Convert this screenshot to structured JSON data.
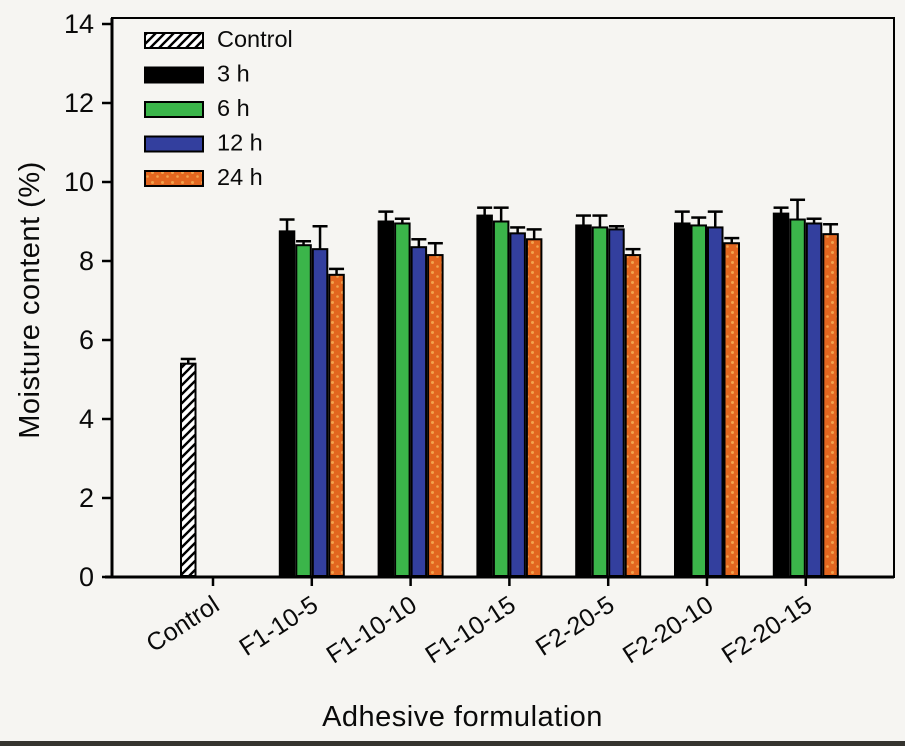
{
  "figure": {
    "background": "#f6f5f2",
    "frame_color": "#000000",
    "text_color": "#0a0a0a"
  },
  "chart_data": {
    "type": "bar",
    "title": "",
    "xlabel": "Adhesive formulation",
    "ylabel": "Moisture content (%)",
    "ylim": [
      0,
      14
    ],
    "yticks": [
      0,
      2,
      4,
      6,
      8,
      10,
      12,
      14
    ],
    "grid": false,
    "legend_position": "top-left",
    "error_bars": "upper",
    "categories": [
      "Control",
      "F1-10-5",
      "F1-10-10",
      "F1-10-15",
      "F2-20-5",
      "F2-20-10",
      "F2-20-15"
    ],
    "series": [
      {
        "name": "Control",
        "style": "hatch",
        "color": "#ffffff",
        "hatch_color": "#000000",
        "slot": 0,
        "values": [
          5.4,
          null,
          null,
          null,
          null,
          null,
          null
        ],
        "errors": [
          0.12,
          null,
          null,
          null,
          null,
          null,
          null
        ]
      },
      {
        "name": "3 h",
        "style": "solid",
        "color": "#000000",
        "slot": 0,
        "values": [
          null,
          8.75,
          9.0,
          9.15,
          8.9,
          8.95,
          9.2
        ],
        "errors": [
          null,
          0.3,
          0.25,
          0.2,
          0.25,
          0.3,
          0.15
        ]
      },
      {
        "name": "6 h",
        "style": "solid",
        "color": "#3bb54a",
        "slot": 1,
        "values": [
          null,
          8.4,
          8.95,
          9.0,
          8.85,
          8.9,
          9.05
        ],
        "errors": [
          null,
          0.1,
          0.12,
          0.35,
          0.3,
          0.2,
          0.5
        ]
      },
      {
        "name": "12 h",
        "style": "solid",
        "color": "#333f9e",
        "slot": 2,
        "values": [
          null,
          8.3,
          8.35,
          8.7,
          8.8,
          8.85,
          8.95
        ],
        "errors": [
          null,
          0.58,
          0.2,
          0.15,
          0.08,
          0.4,
          0.12
        ]
      },
      {
        "name": "24 h",
        "style": "dots",
        "color": "#e2661f",
        "dot_color": "#f2a24d",
        "slot": 3,
        "values": [
          null,
          7.65,
          8.15,
          8.55,
          8.15,
          8.45,
          8.68
        ],
        "errors": [
          null,
          0.15,
          0.3,
          0.25,
          0.15,
          0.13,
          0.25
        ]
      }
    ]
  }
}
